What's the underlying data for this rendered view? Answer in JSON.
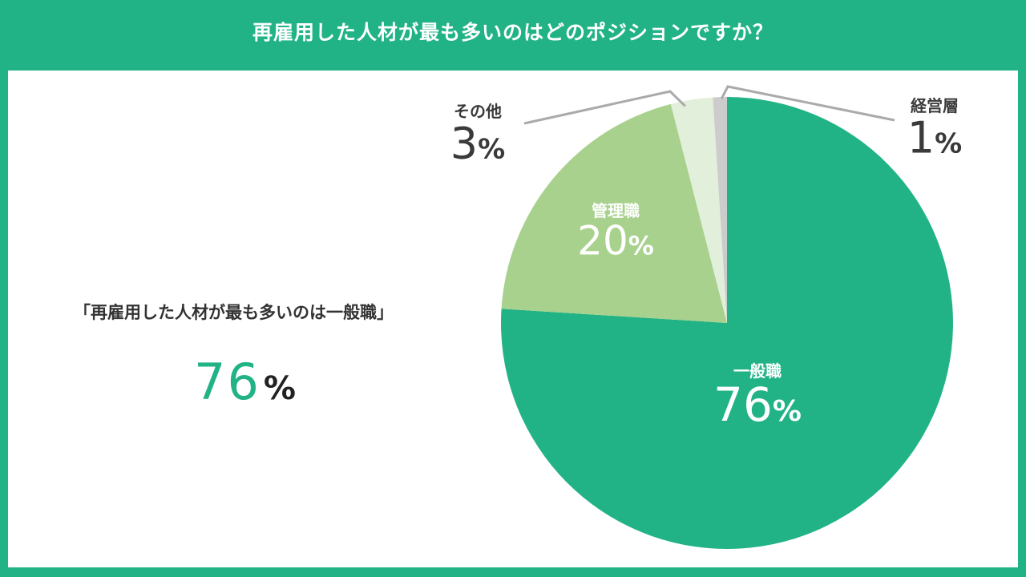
{
  "header": {
    "title": "再雇用した人材が最も多いのはどのポジションですか？"
  },
  "summary": {
    "text": "「再雇用した人材が最も多いのは一般職」",
    "number": "76",
    "unit": "%"
  },
  "colors": {
    "accent": "#21b386",
    "slice_general": "#21b386",
    "slice_manager": "#a8d18d",
    "slice_other": "#e2efda",
    "slice_exec": "#cccccc",
    "outside_text": "#3a3a3a",
    "leader_line": "#aaaaaa"
  },
  "chart_data": {
    "type": "pie",
    "title": "",
    "slices": [
      {
        "label": "一般職",
        "value": 76,
        "display": "76",
        "unit": "%",
        "color": "#21b386",
        "label_position": "inside"
      },
      {
        "label": "管理職",
        "value": 20,
        "display": "20",
        "unit": "%",
        "color": "#a8d18d",
        "label_position": "inside"
      },
      {
        "label": "その他",
        "value": 3,
        "display": "3",
        "unit": "%",
        "color": "#e2efda",
        "label_position": "outside-left"
      },
      {
        "label": "経営層",
        "value": 1,
        "display": "1",
        "unit": "%",
        "color": "#cccccc",
        "label_position": "outside-right"
      }
    ],
    "start": "12 o'clock",
    "direction": "clockwise"
  }
}
